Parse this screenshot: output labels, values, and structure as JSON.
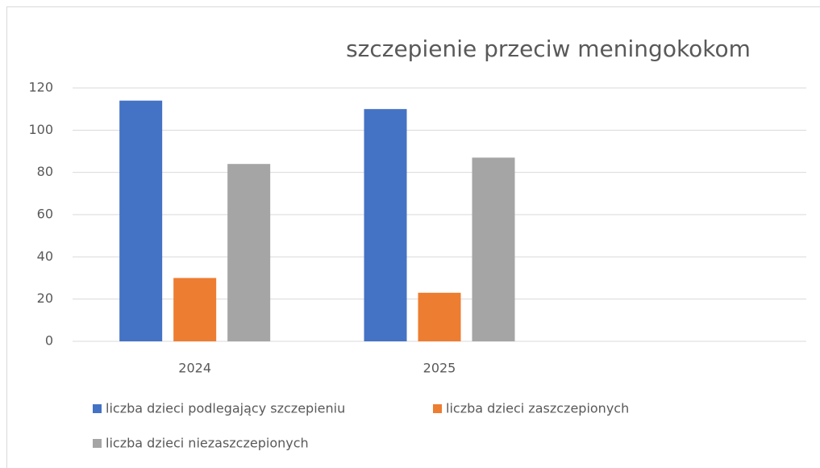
{
  "chart_data": {
    "type": "bar",
    "title": "szczepienie przeciw meningokokom",
    "categories": [
      "2024",
      "2025",
      null
    ],
    "series": [
      {
        "name": "liczba dzieci podlegający szczepieniu",
        "color": "#4472c4",
        "values": [
          114,
          110,
          null
        ]
      },
      {
        "name": "liczba dzieci zaszczepionych",
        "color": "#ed7d31",
        "values": [
          30,
          23,
          null
        ]
      },
      {
        "name": "liczba dzieci niezaszczepionych",
        "color": "#a5a5a5",
        "values": [
          84,
          87,
          null
        ]
      }
    ],
    "ylim": [
      0,
      120
    ],
    "yticks": [
      0,
      20,
      40,
      60,
      80,
      100,
      120
    ],
    "grid": true,
    "legend": "bottom"
  }
}
